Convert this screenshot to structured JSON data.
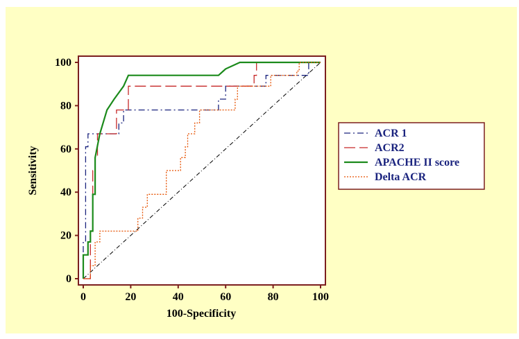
{
  "chart_data": {
    "type": "line",
    "title": "",
    "xlabel": "100-Specificity",
    "ylabel": "Sensitivity",
    "xlim": [
      0,
      100
    ],
    "ylim": [
      0,
      100
    ],
    "xticks": [
      "0",
      "20",
      "40",
      "60",
      "80",
      "100"
    ],
    "yticks": [
      "0",
      "20",
      "40",
      "60",
      "80",
      "100"
    ],
    "legend_position": "right",
    "reference_line": {
      "x": [
        0,
        100
      ],
      "y": [
        0,
        100
      ]
    },
    "series": [
      {
        "name": "ACR 1",
        "color": "#1a237e",
        "dash": "dash-dot",
        "x": [
          0,
          0,
          1,
          1,
          2,
          2,
          4,
          4,
          15,
          15,
          17,
          17,
          57,
          57,
          60,
          60,
          77,
          77,
          95,
          95,
          100
        ],
        "y": [
          0,
          17,
          17,
          61,
          61,
          67,
          67,
          67,
          67,
          72,
          72,
          78,
          78,
          83,
          83,
          89,
          89,
          94,
          94,
          100,
          100
        ]
      },
      {
        "name": "ACR2",
        "color": "#c62828",
        "dash": "long-dash",
        "x": [
          0,
          3,
          3,
          4,
          4,
          5,
          5,
          6,
          6,
          14,
          14,
          19,
          19,
          72,
          72,
          73,
          73,
          100
        ],
        "y": [
          0,
          0,
          22,
          22,
          50,
          50,
          56,
          56,
          67,
          67,
          78,
          78,
          89,
          89,
          94,
          94,
          100,
          100
        ],
        "step": true
      },
      {
        "name": "APACHE II score",
        "color": "#1b8a1b",
        "dash": "solid",
        "x": [
          0,
          0,
          2,
          2,
          3,
          3,
          4,
          4,
          5,
          5,
          7,
          10,
          13,
          17,
          19,
          57,
          59,
          60,
          66,
          100
        ],
        "y": [
          0,
          11,
          11,
          17,
          17,
          22,
          22,
          39,
          39,
          56,
          67,
          78,
          83,
          89,
          94,
          94,
          96,
          97,
          100,
          100
        ]
      },
      {
        "name": "Delta ACR",
        "color": "#e65100",
        "dash": "dotted",
        "x": [
          0,
          3,
          3,
          5,
          5,
          7,
          7,
          23,
          23,
          25,
          25,
          27,
          27,
          28,
          28,
          35,
          35,
          41,
          41,
          43,
          43,
          44,
          44,
          47,
          47,
          49,
          49,
          51,
          51,
          64,
          64,
          65,
          65,
          67,
          67,
          78,
          78,
          79,
          79,
          80,
          80,
          90,
          90,
          91,
          91,
          100
        ],
        "y": [
          0,
          0,
          6,
          6,
          17,
          17,
          22,
          22,
          28,
          28,
          33,
          33,
          39,
          39,
          39,
          39,
          50,
          50,
          56,
          56,
          61,
          61,
          67,
          67,
          72,
          72,
          78,
          78,
          78,
          78,
          83,
          83,
          89,
          89,
          89,
          89,
          89,
          89,
          94,
          94,
          94,
          94,
          96,
          96,
          100,
          100
        ]
      }
    ]
  }
}
